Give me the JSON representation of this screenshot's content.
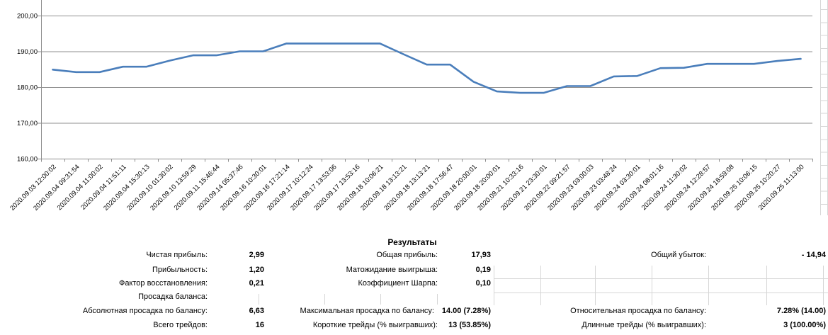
{
  "results": {
    "title": "Результаты",
    "left": [
      {
        "label": "Чистая прибыль:",
        "value": "2,99"
      },
      {
        "label": "Прибыльность:",
        "value": "1,20"
      },
      {
        "label": "Фактор восстановления:",
        "value": "0,21"
      },
      {
        "label": "Просадка баланса:",
        "value": ""
      },
      {
        "label": "Абсолютная просадка по балансу:",
        "value": "6,63"
      },
      {
        "label": "Всего трейдов:",
        "value": "16"
      }
    ],
    "middle": [
      {
        "label": "Общая прибыль:",
        "value": "17,93"
      },
      {
        "label": "Матожидание выигрыша:",
        "value": "0,19"
      },
      {
        "label": "Коэффициент Шарпа:",
        "value": "0,10"
      },
      {
        "label": "Максимальная просадка по балансу:",
        "value": "14.00 (7.28%)"
      },
      {
        "label": "Короткие трейды (% выигравших):",
        "value": "13 (53.85%)"
      }
    ],
    "right": [
      {
        "label": "Общий убыток:",
        "value": "- 14,94"
      },
      {
        "label": "Относительная просадка по балансу:",
        "value": "7.28% (14.00)"
      },
      {
        "label": "Длинные трейды (% выигравших):",
        "value": "3 (100.00%)"
      }
    ]
  },
  "chart_data": {
    "type": "line",
    "title": "",
    "legend": "none",
    "grid": true,
    "ylim": [
      160,
      204
    ],
    "y_tick_values": [
      160,
      170,
      180,
      190,
      200
    ],
    "y_tick_labels": [
      "160,00",
      "170,00",
      "180,00",
      "190,00",
      "200,00"
    ],
    "x_labels": [
      "2020.09.03 12:00:02",
      "2020.09.04 09:31:54",
      "2020.09.04 11:00:02",
      "2020.09.04 11:51:11",
      "2020.09.04 15:30:13",
      "2020.09.10 01:30:02",
      "2020.09.10 13:59:29",
      "2020.09.11 15:46:44",
      "2020.09.14 05:37:46",
      "2020.09.16 10:30:01",
      "2020.09.16 17:21:14",
      "2020.09.17 10:12:24",
      "2020.09.17 13:53:06",
      "2020.09.17 13:53:16",
      "2020.09.18 10:06:21",
      "2020.09.18 13:13:21",
      "2020.09.18 13:13:21",
      "2020.09.18 17:56:47",
      "2020.09.18 20:00:01",
      "2020.09.18 20:00:01",
      "2020.09.21 10:33:16",
      "2020.09.21 23:30:01",
      "2020.09.22 09:21:57",
      "2020.09.23 03:00:03",
      "2020.09.23 03:48:24",
      "2020.09.24 03:30:01",
      "2020.09.24 08:01:16",
      "2020.09.24 11:30:02",
      "2020.09.24 12:28:57",
      "2020.09.24 18:59:08",
      "2020.09.25 10:06:15",
      "2020.09.25 10:20:27",
      "2020.09.25 11:13:00"
    ],
    "values": [
      184.9,
      184.2,
      184.2,
      185.7,
      185.7,
      187.4,
      188.9,
      188.9,
      190.0,
      190.0,
      192.2,
      192.2,
      192.2,
      192.2,
      192.2,
      189.2,
      186.3,
      186.3,
      181.5,
      178.8,
      178.4,
      178.4,
      180.3,
      180.3,
      183.0,
      183.1,
      185.3,
      185.4,
      186.5,
      186.5,
      186.5,
      187.3,
      187.9
    ]
  },
  "colors": {
    "line": "#4a7ebb",
    "chart_grid": "#8f8f8f",
    "sheet_grid": "#d6d6d6",
    "text": "#000000"
  }
}
